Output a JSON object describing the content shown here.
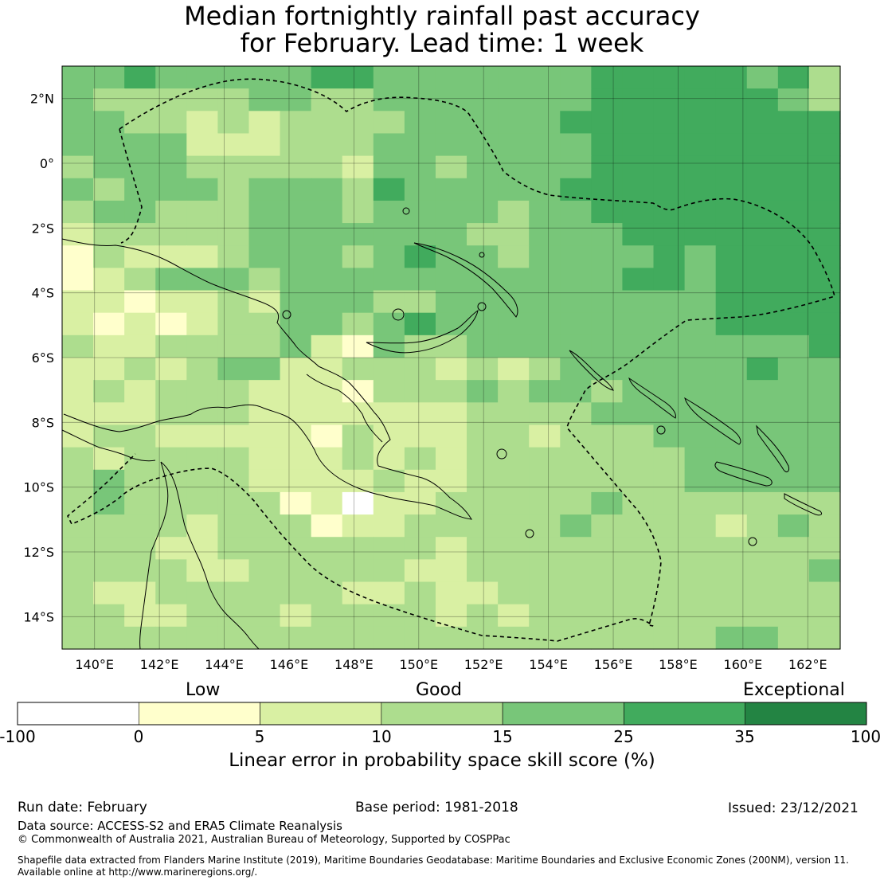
{
  "title": {
    "line1": "Median fortnightly rainfall past accuracy",
    "line2": "for February. Lead time: 1 week"
  },
  "map": {
    "lat_labels": [
      "2°N",
      "0°",
      "2°S",
      "4°S",
      "6°S",
      "8°S",
      "10°S",
      "12°S",
      "14°S"
    ],
    "lon_labels": [
      "140°E",
      "142°E",
      "144°E",
      "146°E",
      "148°E",
      "150°E",
      "152°E",
      "154°E",
      "156°E",
      "158°E",
      "160°E",
      "162°E"
    ],
    "extent": {
      "lon_min": 139.0,
      "lon_max": 163.0,
      "lat_min": -15.0,
      "lat_max": 3.0
    },
    "grid_rows": [
      "4454444455444444455555453",
      "4333334433444444455555543",
      "4433232333344444555555555",
      "4444222333444444455555555",
      "3444333332443444455555555",
      "4344434443544444555555555",
      "3443334443444434455555555",
      "2333334444444334445555555",
      "1322234443454434444545555",
      "1234443444444444445545555",
      "2212232444334444444445555",
      "2121233443454444444445555",
      "3223333421433444444444445",
      "2232344223332323444444544",
      "2323332221333434434444444",
      "2223332222222333344444444",
      "2332222213222332333444444",
      "3233332223232333333344444",
      "3433332222322333333344444",
      "3433333120223333343333333",
      "3333233312233333433332343",
      "3332233333332333333333333",
      "3333223333322333333333334",
      "3223333332232233333333333",
      "3322333233332323333333333",
      "3333333333333333333334433"
    ]
  },
  "colorbar": {
    "categories": [
      "Low",
      "Good",
      "Exceptional"
    ],
    "ticks": [
      "-100",
      "0",
      "5",
      "10",
      "15",
      "25",
      "35",
      "100"
    ],
    "colors": [
      "#ffffff",
      "#ffffcc",
      "#d9f0a3",
      "#addd8e",
      "#78c679",
      "#41ab5d",
      "#238443"
    ],
    "label": "Linear error in probability space skill score (%)"
  },
  "footer": {
    "run_date": "Run date: February",
    "base_period": "Base period: 1981-2018",
    "issued": "Issued: 23/12/2021",
    "data_source": "Data source: ACCESS-S2 and ERA5 Climate Reanalysis",
    "copyright": "© Commonwealth of Australia 2021, Australian Bureau of Meteorology, Supported by COSPPac",
    "shapefile_line1": "Shapefile data extracted from Flanders Marine Institute (2019), Maritime Boundaries Geodatabase: Maritime Boundaries and Exclusive Economic Zones (200NM), version 11.",
    "shapefile_line2": "Available online at http://www.marineregions.org/."
  }
}
